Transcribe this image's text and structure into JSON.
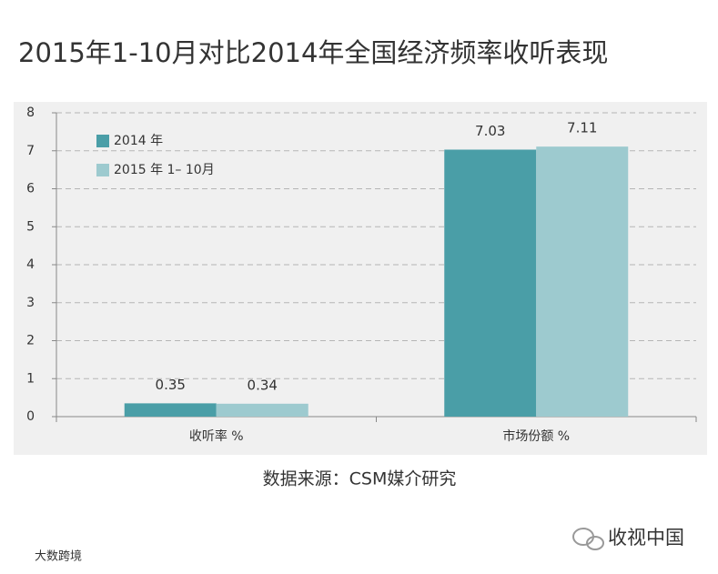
{
  "chart_data": {
    "type": "bar",
    "title": "2015年1-10月对比2014年全国经济频率收听表现",
    "categories": [
      "收听率 %",
      "市场份额 %"
    ],
    "series": [
      {
        "name": "2014 年",
        "color": "#4a9ea7",
        "values": [
          0.35,
          7.03
        ]
      },
      {
        "name": "2015 年 1– 10月",
        "color": "#9dcacf",
        "values": [
          0.34,
          7.11
        ]
      }
    ],
    "ylim": [
      0,
      8
    ],
    "yticks": [
      0,
      1,
      2,
      3,
      4,
      5,
      6,
      7,
      8
    ],
    "grid": true,
    "legend": "top-left"
  },
  "source": "数据来源：CSM媒介研究",
  "watermarks": [
    "收视中国",
    "大数跨境"
  ]
}
